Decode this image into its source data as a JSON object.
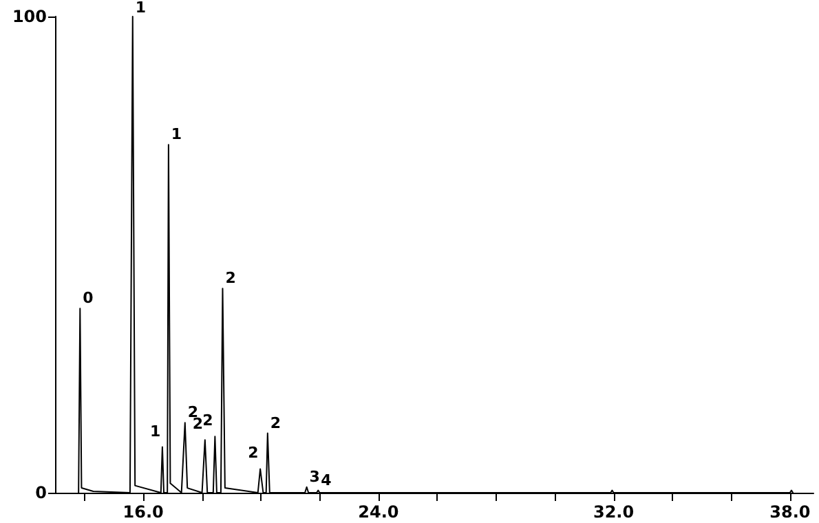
{
  "chart_data": {
    "type": "line",
    "x": [
      13.8,
      13.85,
      13.9,
      14.3,
      15.55,
      15.64,
      15.72,
      16.6,
      16.65,
      16.7,
      16.82,
      16.86,
      16.92,
      17.3,
      17.42,
      17.5,
      18.0,
      18.1,
      18.18,
      18.38,
      18.44,
      18.5,
      18.64,
      18.7,
      18.78,
      19.9,
      19.98,
      20.08,
      20.18,
      20.23,
      20.3,
      21.5,
      21.56,
      21.62,
      21.9,
      21.95,
      22.0,
      31.9,
      31.95,
      32.0,
      38.0,
      38.05,
      38.1
    ],
    "series": [
      {
        "color": "#000000",
        "values": [
          0,
          38.7,
          1,
          0.3,
          0,
          100,
          1.5,
          0,
          9.6,
          0,
          0,
          73.1,
          2,
          0,
          14.7,
          1,
          0,
          11.1,
          0,
          0,
          11.8,
          0,
          0,
          42.9,
          1,
          0,
          5,
          0,
          0,
          12.5,
          0,
          0,
          1.2,
          0,
          0,
          0.5,
          0,
          0,
          0.5,
          0,
          0,
          0.5,
          0
        ]
      }
    ],
    "xlim": [
      13,
      38.8
    ],
    "xticks": [
      {
        "value": 14,
        "label": null
      },
      {
        "value": 16,
        "label": "16.0"
      },
      {
        "value": 18,
        "label": null
      },
      {
        "value": 20,
        "label": null
      },
      {
        "value": 22,
        "label": null
      },
      {
        "value": 24,
        "label": "24.0"
      },
      {
        "value": 26,
        "label": null
      },
      {
        "value": 28,
        "label": null
      },
      {
        "value": 30,
        "label": null
      },
      {
        "value": 32,
        "label": "32.0"
      },
      {
        "value": 34,
        "label": null
      },
      {
        "value": 36,
        "label": null
      },
      {
        "value": 38,
        "label": "38.0"
      }
    ],
    "ylim": [
      0,
      100
    ],
    "yticks": [
      0,
      100
    ],
    "grid": false,
    "marker": "none",
    "line_style": "solid",
    "annotations": [
      {
        "text": "0",
        "x": 13.85,
        "y": 38.7
      },
      {
        "text": "1",
        "x": 15.64,
        "y": 100
      },
      {
        "text": "1",
        "x": 16.86,
        "y": 73.1
      },
      {
        "text": "1",
        "x": 16.65,
        "y": 9.6
      },
      {
        "text": "2",
        "x": 17.42,
        "y": 14.7
      },
      {
        "text": "2",
        "x": 18.1,
        "y": 11.1
      },
      {
        "text": "2",
        "x": 18.44,
        "y": 11.8
      },
      {
        "text": "2",
        "x": 18.7,
        "y": 42.9
      },
      {
        "text": "2",
        "x": 19.98,
        "y": 5
      },
      {
        "text": "2",
        "x": 20.23,
        "y": 12.5
      },
      {
        "text": "3",
        "x": 21.56,
        "y": 1.2
      },
      {
        "text": "4",
        "x": 21.95,
        "y": 0.5
      }
    ]
  }
}
